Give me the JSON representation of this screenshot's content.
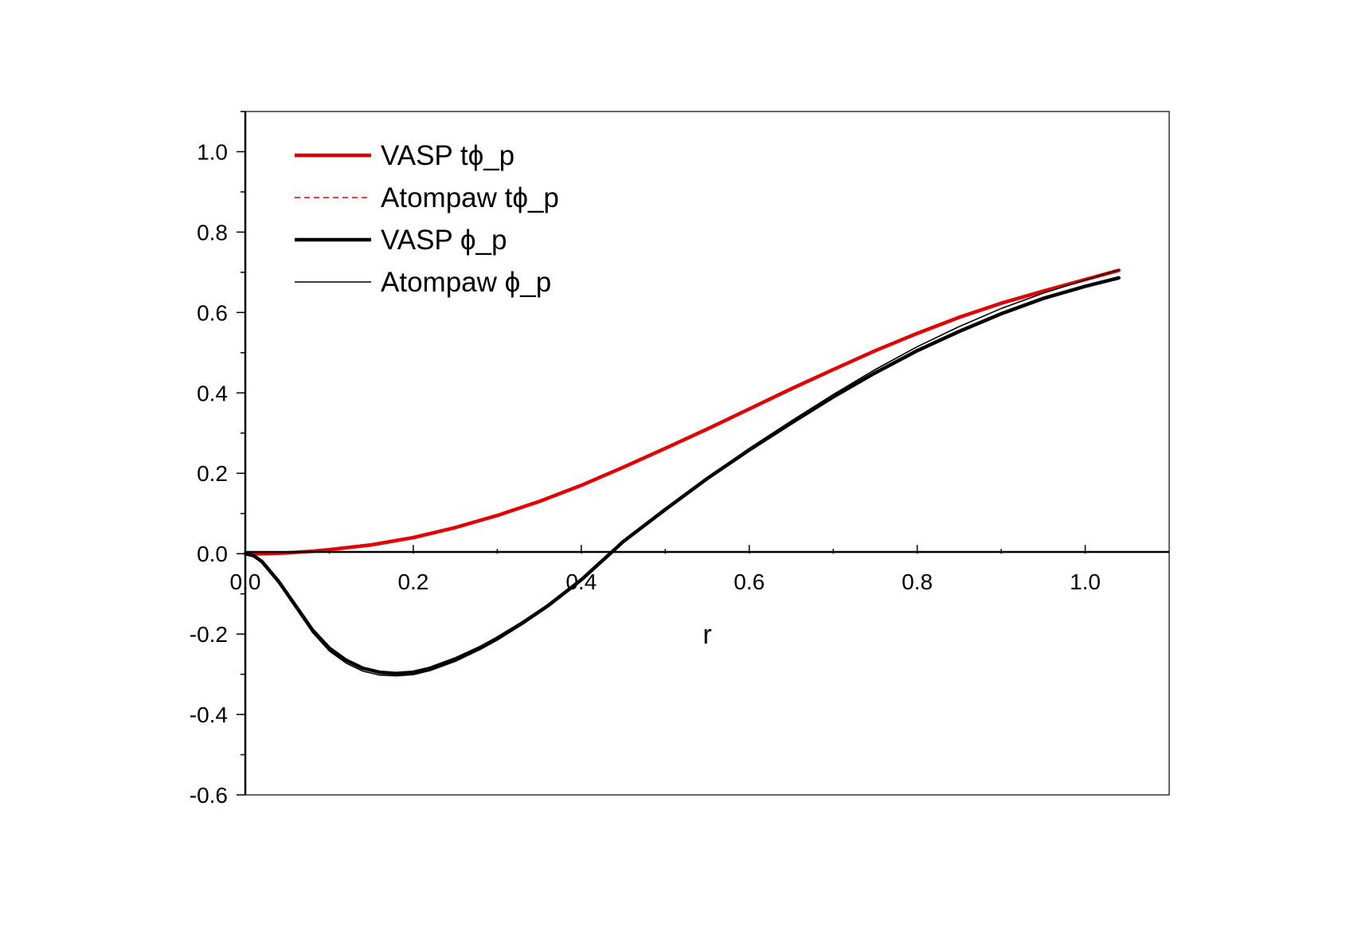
{
  "chart_data": {
    "type": "line",
    "title": "",
    "xlabel": "r",
    "ylabel": "",
    "xlim": [
      0.0,
      1.1
    ],
    "ylim": [
      -0.6,
      1.1
    ],
    "grid": false,
    "legend_position": "top-left",
    "x_ticks": [
      0.0,
      0.2,
      0.4,
      0.6,
      0.8,
      1.0
    ],
    "x_tick_labels": [
      "0.0",
      "0.2",
      "0.4",
      "0.6",
      "0.8",
      "1.0"
    ],
    "y_ticks": [
      -0.6,
      -0.4,
      -0.2,
      0.0,
      0.2,
      0.4,
      0.6,
      0.8,
      1.0
    ],
    "y_tick_labels": [
      "-0.6",
      "-0.4",
      "-0.2",
      "0.0",
      "0.2",
      "0.4",
      "0.6",
      "0.8",
      "1.0"
    ],
    "series": [
      {
        "name": "VASP tϕ_p",
        "color": "#e00000",
        "style": "solid-thick",
        "x": [
          0.0,
          0.02,
          0.05,
          0.08,
          0.1,
          0.15,
          0.2,
          0.25,
          0.3,
          0.35,
          0.4,
          0.45,
          0.5,
          0.55,
          0.6,
          0.65,
          0.7,
          0.75,
          0.8,
          0.85,
          0.9,
          0.95,
          1.0,
          1.04
        ],
        "y": [
          0.0,
          0.0,
          0.002,
          0.006,
          0.01,
          0.022,
          0.04,
          0.065,
          0.095,
          0.13,
          0.17,
          0.215,
          0.262,
          0.31,
          0.36,
          0.41,
          0.458,
          0.505,
          0.548,
          0.588,
          0.623,
          0.653,
          0.682,
          0.705
        ]
      },
      {
        "name": "Atompaw tϕ_p",
        "color": "#e00000",
        "style": "dashed-thin",
        "x": [
          0.0,
          0.02,
          0.05,
          0.08,
          0.1,
          0.15,
          0.2,
          0.25,
          0.3,
          0.35,
          0.4,
          0.45,
          0.5,
          0.55,
          0.6,
          0.65,
          0.7,
          0.75,
          0.8,
          0.85,
          0.9,
          0.95,
          1.0,
          1.04
        ],
        "y": [
          0.0,
          0.0,
          0.002,
          0.006,
          0.01,
          0.022,
          0.04,
          0.065,
          0.095,
          0.13,
          0.17,
          0.215,
          0.262,
          0.31,
          0.36,
          0.41,
          0.458,
          0.505,
          0.548,
          0.588,
          0.623,
          0.653,
          0.682,
          0.705
        ]
      },
      {
        "name": "VASP ϕ_p",
        "color": "#000000",
        "style": "solid-thick",
        "x": [
          0.0,
          0.01,
          0.02,
          0.04,
          0.06,
          0.08,
          0.1,
          0.12,
          0.14,
          0.16,
          0.18,
          0.2,
          0.22,
          0.25,
          0.28,
          0.3,
          0.33,
          0.36,
          0.4,
          0.43,
          0.45,
          0.5,
          0.55,
          0.6,
          0.65,
          0.7,
          0.75,
          0.8,
          0.85,
          0.9,
          0.95,
          1.0,
          1.04
        ],
        "y": [
          0.0,
          -0.005,
          -0.02,
          -0.07,
          -0.13,
          -0.19,
          -0.235,
          -0.265,
          -0.285,
          -0.295,
          -0.298,
          -0.295,
          -0.285,
          -0.262,
          -0.233,
          -0.21,
          -0.172,
          -0.13,
          -0.065,
          -0.008,
          0.03,
          0.11,
          0.187,
          0.258,
          0.325,
          0.39,
          0.45,
          0.505,
          0.553,
          0.597,
          0.635,
          0.665,
          0.686
        ]
      },
      {
        "name": "Atompaw ϕ_p",
        "color": "#000000",
        "style": "solid-thin",
        "x": [
          0.0,
          0.01,
          0.02,
          0.04,
          0.06,
          0.08,
          0.1,
          0.12,
          0.14,
          0.16,
          0.18,
          0.2,
          0.22,
          0.25,
          0.28,
          0.3,
          0.33,
          0.36,
          0.4,
          0.43,
          0.45,
          0.5,
          0.55,
          0.6,
          0.65,
          0.7,
          0.75,
          0.8,
          0.85,
          0.9,
          0.95,
          1.0,
          1.04
        ],
        "y": [
          0.0,
          -0.005,
          -0.022,
          -0.074,
          -0.135,
          -0.196,
          -0.242,
          -0.272,
          -0.292,
          -0.302,
          -0.304,
          -0.301,
          -0.291,
          -0.268,
          -0.238,
          -0.215,
          -0.176,
          -0.133,
          -0.068,
          -0.01,
          0.028,
          0.11,
          0.189,
          0.262,
          0.33,
          0.396,
          0.458,
          0.515,
          0.565,
          0.61,
          0.648,
          0.681,
          0.706
        ]
      }
    ]
  }
}
